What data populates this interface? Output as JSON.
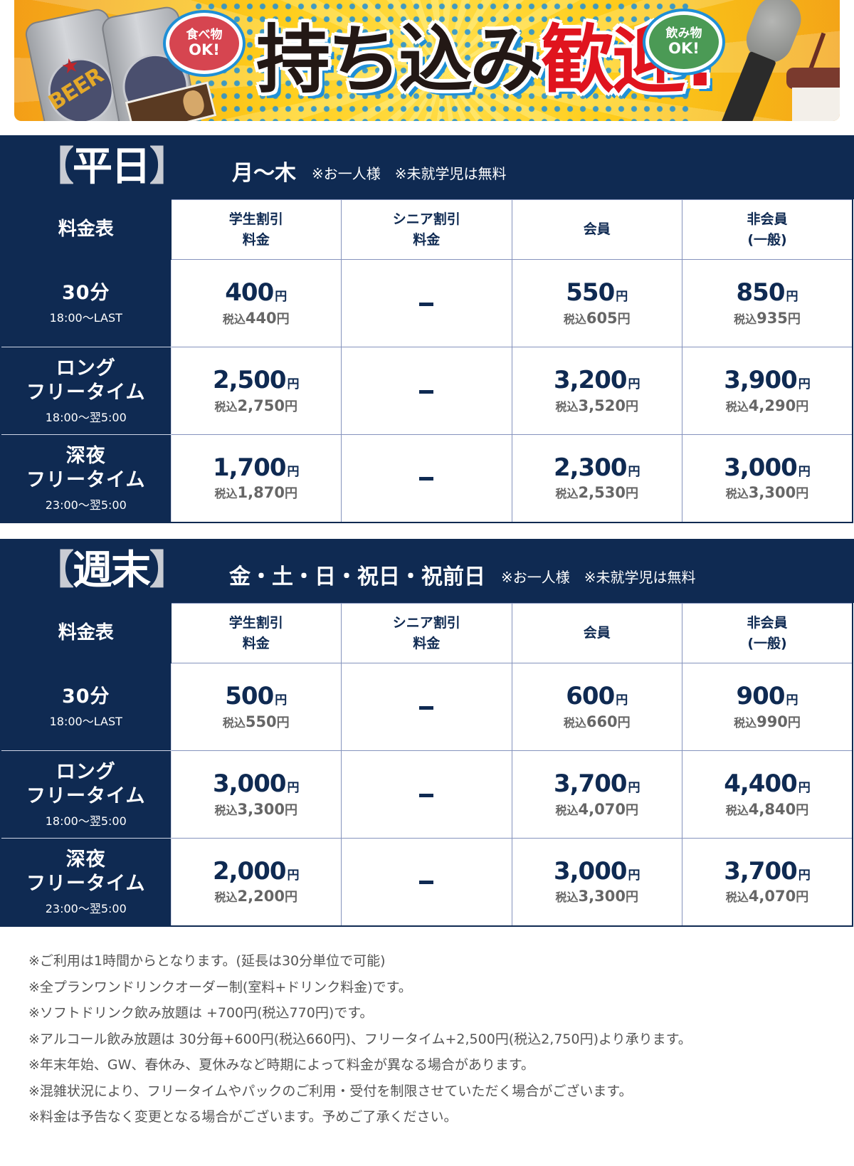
{
  "banner": {
    "headline_black": "持ち込み",
    "headline_red": "歓迎!",
    "food_bubble": {
      "line1": "食べ物",
      "line2": "OK!"
    },
    "drink_bubble": {
      "line1": "飲み物",
      "line2": "OK!"
    },
    "can_label": "BEER",
    "colors": {
      "background": "#ffd21f",
      "dots": "#1f8fd6",
      "food_bubble": "#d64550",
      "drink_bubble": "#4b9a55",
      "headline_red": "#e0141e"
    }
  },
  "theme": {
    "navy": "#0f2a52",
    "grid": "#8593bd",
    "tax_gray": "#666666"
  },
  "columns": {
    "corner": "料金表",
    "student": {
      "line1": "学生割引",
      "line2": "料金"
    },
    "senior": {
      "line1": "シニア割引",
      "line2": "料金"
    },
    "member": {
      "line1": "会員"
    },
    "nonmember": {
      "line1": "非会員",
      "line2": "(一般)"
    }
  },
  "weekday": {
    "title": "平日",
    "bracket_open": "【",
    "bracket_close": "】",
    "days": "月〜木",
    "notes": "※お一人様　※未就学児は無料",
    "rows": [
      {
        "plan": "30分",
        "plan2": "",
        "time": "18:00〜LAST",
        "student": {
          "price": "400",
          "tax": "440"
        },
        "senior": "−",
        "member": {
          "price": "550",
          "tax": "605"
        },
        "nonmember": {
          "price": "850",
          "tax": "935"
        }
      },
      {
        "plan": "ロング",
        "plan2": "フリータイム",
        "time": "18:00〜翌5:00",
        "student": {
          "price": "2,500",
          "tax": "2,750"
        },
        "senior": "−",
        "member": {
          "price": "3,200",
          "tax": "3,520"
        },
        "nonmember": {
          "price": "3,900",
          "tax": "4,290"
        }
      },
      {
        "plan": "深夜",
        "plan2": "フリータイム",
        "time": "23:00〜翌5:00",
        "student": {
          "price": "1,700",
          "tax": "1,870"
        },
        "senior": "−",
        "member": {
          "price": "2,300",
          "tax": "2,530"
        },
        "nonmember": {
          "price": "3,000",
          "tax": "3,300"
        }
      }
    ]
  },
  "weekend": {
    "title": "週末",
    "bracket_open": "【",
    "bracket_close": "】",
    "days": "金・土・日・祝日・祝前日",
    "notes": "※お一人様　※未就学児は無料",
    "rows": [
      {
        "plan": "30分",
        "plan2": "",
        "time": "18:00〜LAST",
        "student": {
          "price": "500",
          "tax": "550"
        },
        "senior": "−",
        "member": {
          "price": "600",
          "tax": "660"
        },
        "nonmember": {
          "price": "900",
          "tax": "990"
        }
      },
      {
        "plan": "ロング",
        "plan2": "フリータイム",
        "time": "18:00〜翌5:00",
        "student": {
          "price": "3,000",
          "tax": "3,300"
        },
        "senior": "−",
        "member": {
          "price": "3,700",
          "tax": "4,070"
        },
        "nonmember": {
          "price": "4,400",
          "tax": "4,840"
        }
      },
      {
        "plan": "深夜",
        "plan2": "フリータイム",
        "time": "23:00〜翌5:00",
        "student": {
          "price": "2,000",
          "tax": "2,200"
        },
        "senior": "−",
        "member": {
          "price": "3,000",
          "tax": "3,300"
        },
        "nonmember": {
          "price": "3,700",
          "tax": "4,070"
        }
      }
    ]
  },
  "labels": {
    "yen": "円",
    "tax_included": "税込"
  },
  "footnotes": [
    "※ご利用は1時間からとなります。(延長は30分単位で可能)",
    "※全プランワンドリンクオーダー制(室料+ドリンク料金)です。",
    "※ソフトドリンク飲み放題は +700円(税込770円)です。",
    "※アルコール飲み放題は 30分毎+600円(税込660円)、フリータイム+2,500円(税込2,750円)より承ります。",
    "※年末年始、GW、春休み、夏休みなど時期によって料金が異なる場合があります。",
    "※混雑状況により、フリータイムやパックのご利用・受付を制限させていただく場合がございます。",
    "※料金は予告なく変更となる場合がございます。予めご了承ください。"
  ]
}
